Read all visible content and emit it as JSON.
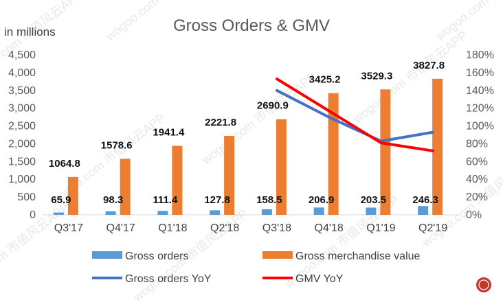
{
  "chart_data": {
    "type": "bar",
    "title": "Gross Orders & GMV",
    "unit_label": "in millions",
    "categories": [
      "Q3'17",
      "Q4'17",
      "Q1'18",
      "Q2'18",
      "Q3'18",
      "Q4'18",
      "Q1'19",
      "Q2'19"
    ],
    "series": [
      {
        "name": "Gross orders",
        "kind": "bar",
        "axis": "left",
        "color": "#5B9BD5",
        "values": [
          65.9,
          98.3,
          111.4,
          127.8,
          158.5,
          206.9,
          203.5,
          246.3
        ],
        "labels": [
          "65.9",
          "98.3",
          "111.4",
          "127.8",
          "158.5",
          "206.9",
          "203.5",
          "246.3"
        ]
      },
      {
        "name": "Gross merchandise value",
        "kind": "bar",
        "axis": "left",
        "color": "#ED7D31",
        "values": [
          1064.8,
          1578.6,
          1941.4,
          2221.8,
          2690.9,
          3425.2,
          3529.3,
          3827.8
        ],
        "labels": [
          "1064.8",
          "1578.6",
          "1941.4",
          "2221.8",
          "2690.9",
          "3425.2",
          "3529.3",
          "3827.8"
        ]
      },
      {
        "name": "Gross orders YoY",
        "kind": "line",
        "axis": "right",
        "color": "#4472C4",
        "values": [
          null,
          null,
          null,
          null,
          140,
          110,
          83,
          93
        ]
      },
      {
        "name": "GMV YoY",
        "kind": "line",
        "axis": "right",
        "color": "#FF0000",
        "values": [
          null,
          null,
          null,
          null,
          153,
          117,
          81,
          72
        ]
      }
    ],
    "ylim": [
      0,
      4500
    ],
    "yticks": [
      0,
      500,
      1000,
      1500,
      2000,
      2500,
      3000,
      3500,
      4000,
      4500
    ],
    "ytick_labels": [
      "0",
      "500",
      "1,000",
      "1,500",
      "2,000",
      "2,500",
      "3,000",
      "3,500",
      "4,000",
      "4,500"
    ],
    "y2lim": [
      0,
      180
    ],
    "y2ticks": [
      0,
      20,
      40,
      60,
      80,
      100,
      120,
      140,
      160,
      180
    ],
    "y2tick_labels": [
      "0%",
      "20%",
      "40%",
      "60%",
      "80%",
      "100%",
      "120%",
      "140%",
      "160%",
      "180%"
    ],
    "legend_position": "bottom"
  },
  "watermark": "wogoo.com 市值风云APP"
}
